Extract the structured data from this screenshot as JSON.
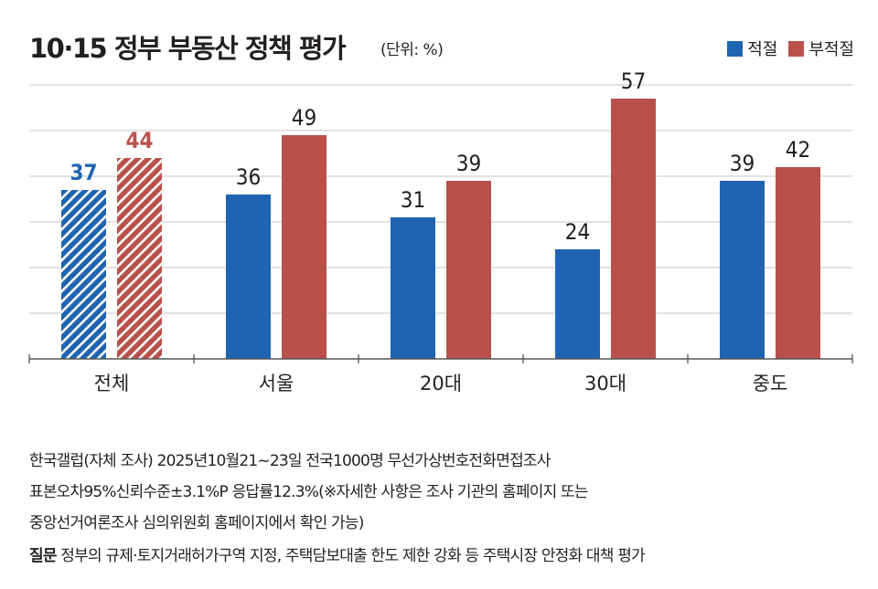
{
  "header": {
    "title": "10·15 정부 부동산 정책 평가",
    "unit": "(단위: %)"
  },
  "colors": {
    "appropriate": "#1f64b1",
    "inappropriate": "#b9514a",
    "grid": "#d0d0d0",
    "axis": "#555555",
    "text": "#231f20"
  },
  "chart_data": {
    "type": "bar",
    "title": "10·15 정부 부동산 정책 평가",
    "subtitle": "(단위: %)",
    "xlabel": "",
    "ylabel": "",
    "ylim": [
      0,
      60
    ],
    "grid": true,
    "legend_position": "top-right",
    "categories": [
      "전체",
      "서울",
      "20대",
      "30대",
      "중도"
    ],
    "series": [
      {
        "name": "적절",
        "values": [
          37,
          36,
          31,
          24,
          39
        ],
        "labels": [
          "37",
          "36",
          "31",
          "24",
          "39"
        ]
      },
      {
        "name": "부적절",
        "values": [
          44,
          49,
          39,
          57,
          42
        ],
        "labels": [
          "44",
          "49",
          "39",
          "57",
          "42"
        ]
      }
    ],
    "highlight_category": "전체"
  },
  "footer": {
    "line1": "한국갤럽(자체 조사) 2025년10월21~23일 전국1000명 무선가상번호전화면접조사",
    "line2": "표본오차95%신뢰수준±3.1%P 응답률12.3%(※자세한 사항은 조사 기관의 홈페이지 또는",
    "line3": "중앙선거여론조사 심의위원회 홈페이지에서 확인 가능)",
    "question_label": "질문",
    "question_text": " 정부의 규제·토지거래허가구역 지정, 주택담보대출 한도 제한 강화 등 주택시장 안정화 대책 평가"
  }
}
